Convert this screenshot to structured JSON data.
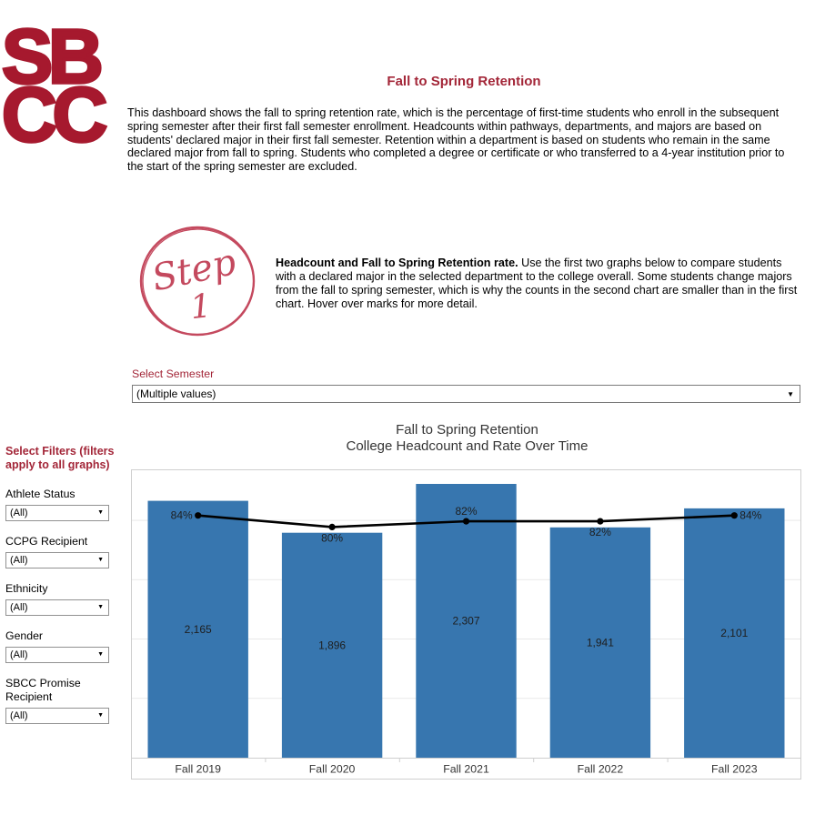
{
  "header": {
    "title": "Fall to Spring Retention",
    "intro": "This dashboard shows the fall to spring retention rate, which is the percentage of first-time students who enroll in the subsequent spring semester after their first fall semester enrollment. Headcounts within pathways, departments, and majors are based on students' declared major in their first fall semester. Retention within a department is based on students who remain in the same declared major from fall to spring. Students who completed a degree or certificate or who transferred to a 4-year institution prior to the start of the spring semester are excluded."
  },
  "logo": {
    "line1": "SB",
    "line2": "CC"
  },
  "step": {
    "badge_word": "Step",
    "badge_number": "1",
    "lead": "Headcount and Fall to Spring Retention rate.",
    "body": "Use the first two graphs below to compare students with a declared major in the selected department to the college overall. Some students change majors from the fall to spring semester, which is why the counts in the second chart are smaller than in the first chart. Hover over marks for more detail."
  },
  "semester_filter": {
    "label": "Select Semester",
    "value": "(Multiple values)"
  },
  "sidebar": {
    "heading": "Select Filters (filters apply to all graphs)",
    "filters": [
      {
        "label": "Athlete Status",
        "value": "(All)"
      },
      {
        "label": "CCPG Recipient",
        "value": "(All)"
      },
      {
        "label": "Ethnicity",
        "value": "(All)"
      },
      {
        "label": "Gender",
        "value": "(All)"
      },
      {
        "label": "SBCC Promise Recipient",
        "value": "(All)"
      }
    ]
  },
  "chart_data": {
    "type": "bar",
    "title_line1": "Fall to Spring Retention",
    "title_line2": "College Headcount and Rate Over Time",
    "categories": [
      "Fall 2019",
      "Fall 2020",
      "Fall 2021",
      "Fall 2022",
      "Fall 2023"
    ],
    "series": [
      {
        "name": "College Headcount",
        "type": "bar",
        "values": [
          2165,
          1896,
          2307,
          1941,
          2101
        ],
        "labels": [
          "2,165",
          "1,896",
          "2,307",
          "1,941",
          "2,101"
        ],
        "ylim": [
          0,
          2430
        ],
        "color": "#3776AF"
      },
      {
        "name": "Fall to Spring Retention Rate",
        "type": "line",
        "values": [
          84,
          80,
          82,
          82,
          84
        ],
        "labels": [
          "84%",
          "80%",
          "82%",
          "82%",
          "84%"
        ],
        "ylim": [
          0,
          100
        ],
        "color": "#000000",
        "label_placement": [
          "left",
          "below",
          "above",
          "below",
          "right"
        ]
      }
    ],
    "grid": true,
    "gridline_step_bars": 500,
    "legend": "none",
    "xlabel": "",
    "ylabel": ""
  },
  "colors": {
    "accent_crimson": "#A32638",
    "logo_red": "#A6192E",
    "step_rose": "#C4495E",
    "bar_blue": "#3776AF",
    "chart_border": "#CFCFCF",
    "gridline": "#E9E9E9"
  }
}
